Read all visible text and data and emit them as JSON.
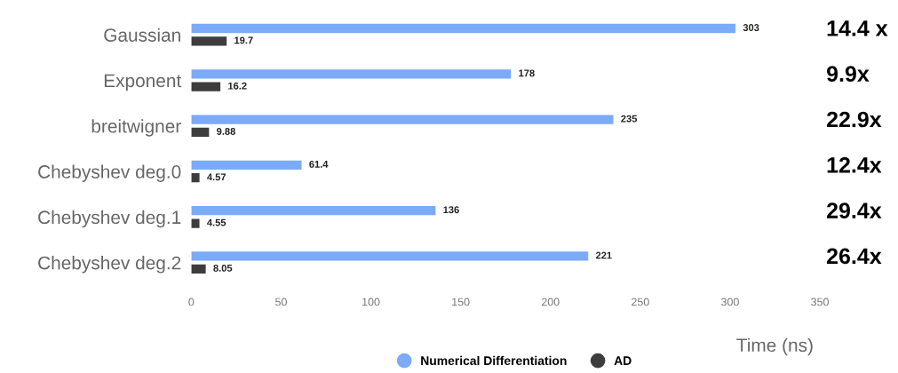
{
  "chart_data": {
    "type": "bar",
    "orientation": "horizontal",
    "xlabel": "Time (ns)",
    "categories": [
      "Gaussian",
      "Exponent",
      "breitwigner",
      "Chebyshev deg.0",
      "Chebyshev deg.1",
      "Chebyshev deg.2"
    ],
    "series": [
      {
        "name": "Numerical Differentiation",
        "color": "#7baaf7",
        "values": [
          303,
          178,
          235,
          61.4,
          136,
          221
        ]
      },
      {
        "name": "AD",
        "color": "#3d3d3d",
        "values": [
          19.7,
          16.2,
          9.88,
          4.57,
          4.55,
          8.05
        ]
      }
    ],
    "xlim": [
      0,
      350
    ],
    "xticks": [
      0,
      50,
      100,
      150,
      200,
      250,
      300,
      350
    ],
    "data_labels": true,
    "grid": false,
    "legend": "bottom",
    "annotations": [
      "14.4 x",
      "9.9x",
      "22.9x",
      "12.4x",
      "29.4x",
      "26.4x"
    ]
  }
}
